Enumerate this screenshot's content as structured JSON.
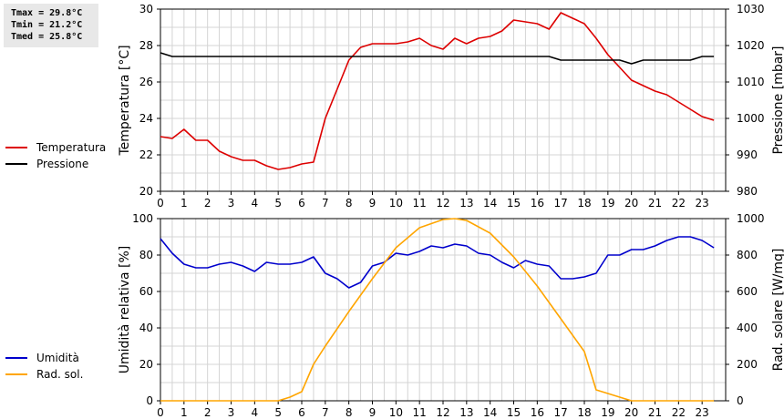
{
  "stats": {
    "tmax": "Tmax = 29.8°C",
    "tmin": "Tmin = 21.2°C",
    "tmed": "Tmed = 25.8°C"
  },
  "legend_top": [
    {
      "label": "Temperatura",
      "color": "#dd0000"
    },
    {
      "label": "Pressione",
      "color": "#000000"
    }
  ],
  "legend_bottom": [
    {
      "label": "Umidità",
      "color": "#0000cc"
    },
    {
      "label": "Rad. sol.",
      "color": "#ffa500"
    }
  ],
  "chart_data": [
    {
      "type": "line",
      "xlim": [
        0,
        24
      ],
      "xticks": [
        0,
        1,
        2,
        3,
        4,
        5,
        6,
        7,
        8,
        9,
        10,
        11,
        12,
        13,
        14,
        15,
        16,
        17,
        18,
        19,
        20,
        21,
        22,
        23
      ],
      "grid": true,
      "ylabel": "Temperatura [°C]",
      "ylim": [
        20,
        30
      ],
      "yticks": [
        20,
        22,
        24,
        26,
        28,
        30
      ],
      "y2label": "Pressione [mbar]",
      "y2lim": [
        980,
        1030
      ],
      "y2ticks": [
        980,
        990,
        1000,
        1010,
        1020,
        1030
      ],
      "series": [
        {
          "name": "Temperatura",
          "color": "#dd0000",
          "axis": "left",
          "x": [
            0,
            0.5,
            1,
            1.5,
            2,
            2.5,
            3,
            3.5,
            4,
            4.5,
            5,
            5.5,
            6,
            6.5,
            7,
            7.5,
            8,
            8.5,
            9,
            9.5,
            10,
            10.5,
            11,
            11.5,
            12,
            12.5,
            13,
            13.5,
            14,
            14.5,
            15,
            15.5,
            16,
            16.5,
            17,
            17.5,
            18,
            18.5,
            19,
            19.5,
            20,
            20.5,
            21,
            21.5,
            22,
            22.5,
            23,
            23.5
          ],
          "values": [
            23.0,
            22.9,
            23.4,
            22.8,
            22.8,
            22.2,
            21.9,
            21.7,
            21.7,
            21.4,
            21.2,
            21.3,
            21.5,
            21.6,
            24.0,
            25.6,
            27.2,
            27.9,
            28.1,
            28.1,
            28.1,
            28.2,
            28.4,
            28.0,
            27.8,
            28.4,
            28.1,
            28.4,
            28.5,
            28.8,
            29.4,
            29.3,
            29.2,
            28.9,
            29.8,
            29.5,
            29.2,
            28.4,
            27.5,
            26.8,
            26.1,
            25.8,
            25.5,
            25.3,
            24.9,
            24.5,
            24.1,
            23.9
          ]
        },
        {
          "name": "Pressione",
          "color": "#000000",
          "axis": "right",
          "x": [
            0,
            0.5,
            1,
            1.5,
            2,
            2.5,
            3,
            3.5,
            4,
            4.5,
            5,
            5.5,
            6,
            6.5,
            7,
            7.5,
            8,
            8.5,
            9,
            9.5,
            10,
            10.5,
            11,
            11.5,
            12,
            12.5,
            13,
            13.5,
            14,
            14.5,
            15,
            15.5,
            16,
            16.5,
            17,
            17.5,
            18,
            18.5,
            19,
            19.5,
            20,
            20.5,
            21,
            21.5,
            22,
            22.5,
            23,
            23.5
          ],
          "values": [
            1018,
            1017,
            1017,
            1017,
            1017,
            1017,
            1017,
            1017,
            1017,
            1017,
            1017,
            1017,
            1017,
            1017,
            1017,
            1017,
            1017,
            1017,
            1017,
            1017,
            1017,
            1017,
            1017,
            1017,
            1017,
            1017,
            1017,
            1017,
            1017,
            1017,
            1017,
            1017,
            1017,
            1017,
            1016,
            1016,
            1016,
            1016,
            1016,
            1016,
            1015,
            1016,
            1016,
            1016,
            1016,
            1016,
            1017,
            1017
          ]
        }
      ]
    },
    {
      "type": "line",
      "xlim": [
        0,
        24
      ],
      "xticks": [
        0,
        1,
        2,
        3,
        4,
        5,
        6,
        7,
        8,
        9,
        10,
        11,
        12,
        13,
        14,
        15,
        16,
        17,
        18,
        19,
        20,
        21,
        22,
        23
      ],
      "grid": true,
      "ylabel": "Umidità relativa [%]",
      "ylim": [
        0,
        100
      ],
      "yticks": [
        0,
        20,
        40,
        60,
        80,
        100
      ],
      "y2label": "Rad. solare [W/mq]",
      "y2lim": [
        0,
        1000
      ],
      "y2ticks": [
        0,
        200,
        400,
        600,
        800,
        1000
      ],
      "series": [
        {
          "name": "Umidità",
          "color": "#0000cc",
          "axis": "left",
          "x": [
            0,
            0.5,
            1,
            1.5,
            2,
            2.5,
            3,
            3.5,
            4,
            4.5,
            5,
            5.5,
            6,
            6.5,
            7,
            7.5,
            8,
            8.5,
            9,
            9.5,
            10,
            10.5,
            11,
            11.5,
            12,
            12.5,
            13,
            13.5,
            14,
            14.5,
            15,
            15.5,
            16,
            16.5,
            17,
            17.5,
            18,
            18.5,
            19,
            19.5,
            20,
            20.5,
            21,
            21.5,
            22,
            22.5,
            23,
            23.5
          ],
          "values": [
            89,
            81,
            75,
            73,
            73,
            75,
            76,
            74,
            71,
            76,
            75,
            75,
            76,
            79,
            70,
            67,
            62,
            65,
            74,
            76,
            81,
            80,
            82,
            85,
            84,
            86,
            85,
            81,
            80,
            76,
            73,
            77,
            75,
            74,
            67,
            67,
            68,
            70,
            80,
            80,
            83,
            83,
            85,
            88,
            90,
            90,
            88,
            84
          ]
        },
        {
          "name": "Rad. sol.",
          "color": "#ffa500",
          "axis": "right",
          "x": [
            0,
            1,
            2,
            3,
            4,
            5,
            5.5,
            6,
            6.5,
            7,
            8,
            9,
            10,
            11,
            12,
            12.5,
            13,
            14,
            15,
            16,
            17,
            18,
            18.5,
            19,
            20,
            21,
            22,
            23,
            23.5
          ],
          "values": [
            0,
            0,
            0,
            0,
            0,
            0,
            20,
            50,
            200,
            300,
            490,
            670,
            840,
            950,
            995,
            1000,
            990,
            920,
            790,
            630,
            450,
            270,
            60,
            40,
            0,
            0,
            0,
            0,
            0
          ]
        }
      ]
    }
  ]
}
